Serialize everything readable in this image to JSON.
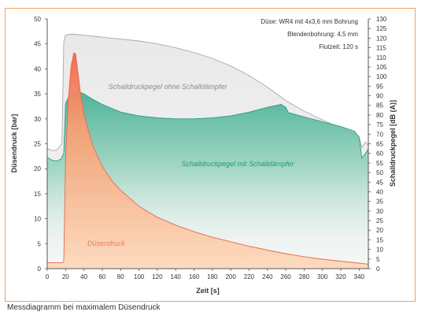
{
  "caption": "Messdiagramm bei maximalem Düsendruck",
  "chart_data": {
    "type": "area",
    "xlabel": "Zeit [s]",
    "ylabel_left": "Düsendruck [bar]",
    "ylabel_right": "Schalldruckpegel [dB (A)]",
    "xlim": [
      0,
      350
    ],
    "ylim_left": [
      0,
      50
    ],
    "ylim_right": [
      0,
      130
    ],
    "x_ticks": [
      "0",
      "20",
      "40",
      "60",
      "80",
      "100",
      "120",
      "140",
      "160",
      "180",
      "200",
      "220",
      "240",
      "260",
      "280",
      "300",
      "320",
      "340"
    ],
    "y_left_ticks": [
      "0",
      "5",
      "10",
      "15",
      "20",
      "25",
      "30",
      "35",
      "40",
      "45",
      "50"
    ],
    "y_right_ticks": [
      "0",
      "5",
      "10",
      "15",
      "20",
      "25",
      "30",
      "35",
      "40",
      "45",
      "50",
      "55",
      "60",
      "65",
      "70",
      "75",
      "80",
      "85",
      "90",
      "95",
      "100",
      "105",
      "110",
      "115",
      "120",
      "125",
      "130"
    ],
    "info_lines": [
      "Düse: WR4 mit 4x3,6 mm Bohrung",
      "Blendenbohrung: 4,5 mm",
      "Flutzeit: 120 s"
    ],
    "grid": false,
    "series": [
      {
        "name": "Schalldruckpegel ohne Schalldämpfer",
        "axis": "right",
        "color": "#c9c9c9",
        "x": [
          0,
          5,
          10,
          16,
          18,
          20,
          25,
          30,
          40,
          60,
          80,
          100,
          120,
          140,
          160,
          180,
          200,
          220,
          240,
          260,
          280,
          300,
          320,
          335,
          340,
          343,
          347,
          350
        ],
        "y": [
          62.5,
          61.5,
          61.5,
          65,
          118,
          121.5,
          122,
          122,
          121.5,
          120.5,
          119.5,
          118.5,
          117,
          115,
          112.5,
          109.5,
          105.5,
          100.5,
          94.5,
          87.5,
          82,
          77.5,
          73,
          70,
          68.5,
          63,
          66,
          64
        ]
      },
      {
        "name": "Schalldruckpegel mit Schalldämpfer",
        "axis": "right",
        "color": "#3aa98b",
        "x": [
          0,
          5,
          10,
          15,
          18,
          20,
          25,
          30,
          35,
          40,
          50,
          60,
          80,
          100,
          120,
          140,
          160,
          180,
          200,
          220,
          240,
          255,
          260,
          263,
          265,
          280,
          300,
          320,
          335,
          340,
          343,
          347,
          350
        ],
        "y": [
          58,
          56.5,
          56,
          57,
          60,
          86,
          91,
          92,
          92,
          91,
          88,
          85.5,
          81.5,
          79.5,
          78.5,
          78,
          78,
          78.5,
          79.5,
          81.5,
          84,
          85.5,
          84,
          81,
          81,
          79,
          76.5,
          74,
          71.5,
          68.5,
          57.5,
          60,
          62.5
        ]
      },
      {
        "name": "Düsendruck",
        "axis": "left",
        "color": "#f07a5e",
        "x": [
          0,
          16,
          18,
          20,
          23,
          26,
          29,
          31,
          33,
          36,
          40,
          45,
          50,
          60,
          70,
          80,
          100,
          120,
          140,
          160,
          180,
          200,
          220,
          240,
          260,
          280,
          300,
          320,
          340,
          350
        ],
        "y": [
          1.2,
          1.2,
          1.4,
          22,
          34,
          40.5,
          43.2,
          43,
          40,
          35.5,
          31,
          27.5,
          24.5,
          20.5,
          17.7,
          15.7,
          12.5,
          10.3,
          8.7,
          7.4,
          6.3,
          5.4,
          4.5,
          3.7,
          3,
          2.4,
          1.9,
          1.5,
          1.1,
          0.9
        ]
      }
    ]
  }
}
